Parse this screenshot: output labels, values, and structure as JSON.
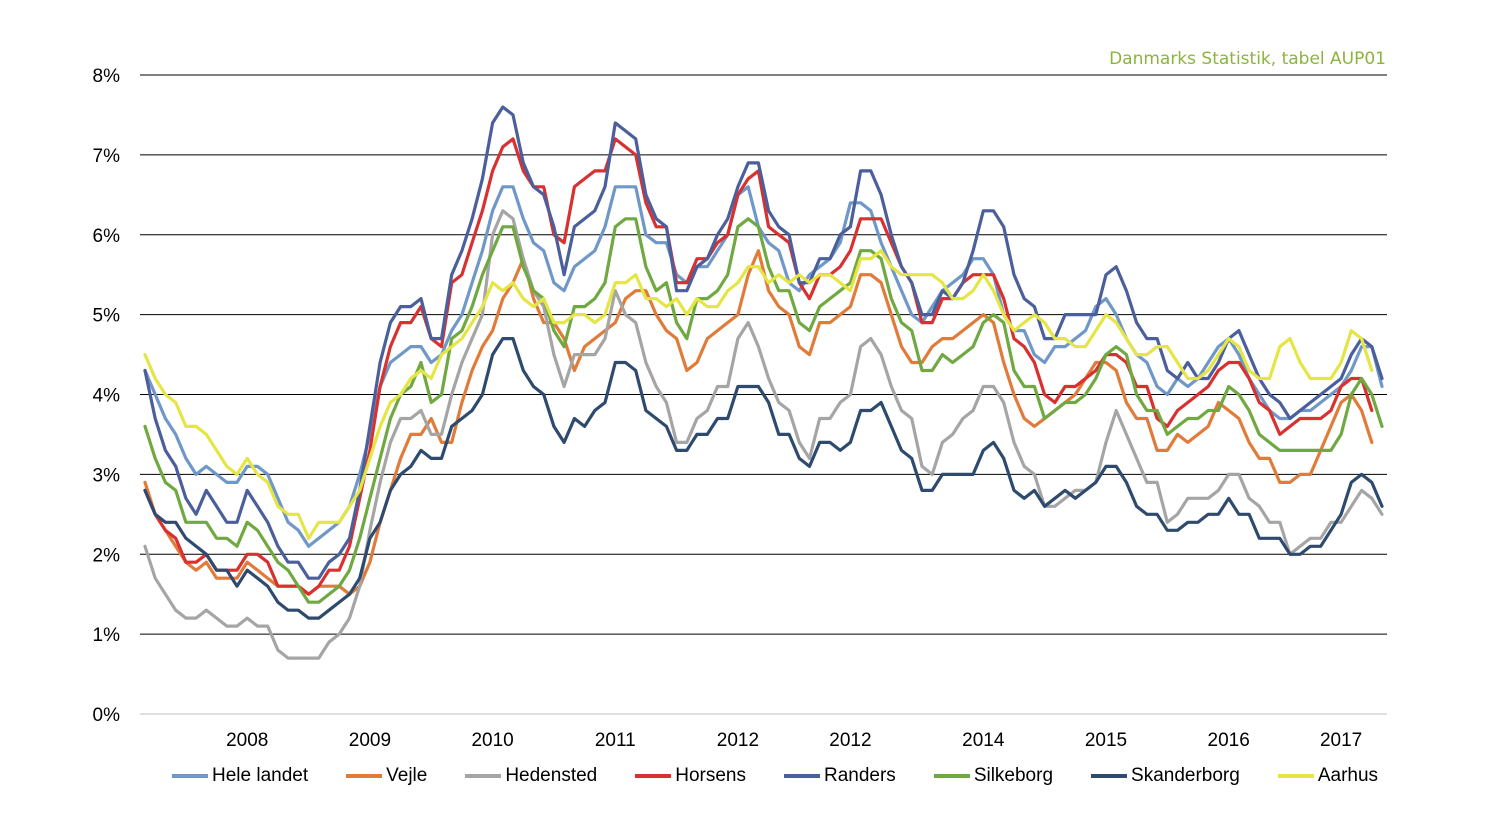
{
  "source_note": "Danmarks Statistik, tabel AUP01",
  "chart_data": {
    "type": "line",
    "title": "",
    "xlabel": "",
    "ylabel": "",
    "ylim": [
      0,
      8
    ],
    "y_ticks": [
      "0%",
      "1%",
      "2%",
      "3%",
      "4%",
      "5%",
      "6%",
      "7%",
      "8%"
    ],
    "x_ticks": [
      {
        "label": "2008",
        "index": 10
      },
      {
        "label": "2009",
        "index": 22
      },
      {
        "label": "2010",
        "index": 34
      },
      {
        "label": "2011",
        "index": 46
      },
      {
        "label": "2012",
        "index": 58
      },
      {
        "label": "2012",
        "index": 69
      },
      {
        "label": "2014",
        "index": 82
      },
      {
        "label": "2015",
        "index": 94
      },
      {
        "label": "2016",
        "index": 106
      },
      {
        "label": "2017",
        "index": 117
      }
    ],
    "grid": true,
    "legend_position": "bottom",
    "series": [
      {
        "name": "Hele landet",
        "color": "#6f97c8",
        "values": [
          4.3,
          4.0,
          3.7,
          3.5,
          3.2,
          3.0,
          3.1,
          3.0,
          2.9,
          2.9,
          3.1,
          3.1,
          3.0,
          2.7,
          2.4,
          2.3,
          2.1,
          2.2,
          2.3,
          2.4,
          2.6,
          3.0,
          3.5,
          4.1,
          4.4,
          4.5,
          4.6,
          4.6,
          4.4,
          4.5,
          4.8,
          5.0,
          5.4,
          5.8,
          6.3,
          6.6,
          6.6,
          6.2,
          5.9,
          5.8,
          5.4,
          5.3,
          5.6,
          5.7,
          5.8,
          6.1,
          6.6,
          6.6,
          6.6,
          6.0,
          5.9,
          5.9,
          5.5,
          5.4,
          5.6,
          5.6,
          5.8,
          6.0,
          6.5,
          6.6,
          6.1,
          5.9,
          5.8,
          5.4,
          5.3,
          5.5,
          5.6,
          5.7,
          5.9,
          6.4,
          6.4,
          6.3,
          5.9,
          5.6,
          5.3,
          5.0,
          4.9,
          5.1,
          5.3,
          5.4,
          5.5,
          5.7,
          5.7,
          5.5,
          5.0,
          4.8,
          4.8,
          4.5,
          4.4,
          4.6,
          4.6,
          4.7,
          4.8,
          5.1,
          5.2,
          5.0,
          4.7,
          4.5,
          4.4,
          4.1,
          4.0,
          4.2,
          4.1,
          4.2,
          4.4,
          4.6,
          4.7,
          4.5,
          4.2,
          4.0,
          3.8,
          3.7,
          3.7,
          3.8,
          3.8,
          3.9,
          4.0,
          4.1,
          4.3,
          4.6,
          4.6,
          4.1
        ]
      },
      {
        "name": "Vejle",
        "color": "#e07b39",
        "values": [
          2.9,
          2.5,
          2.3,
          2.1,
          1.9,
          1.8,
          1.9,
          1.7,
          1.7,
          1.7,
          1.9,
          1.8,
          1.7,
          1.6,
          1.6,
          1.6,
          1.5,
          1.6,
          1.6,
          1.6,
          1.5,
          1.6,
          1.9,
          2.4,
          2.8,
          3.2,
          3.5,
          3.5,
          3.7,
          3.4,
          3.4,
          3.9,
          4.3,
          4.6,
          4.8,
          5.2,
          5.4,
          5.7,
          5.2,
          4.9,
          4.9,
          4.7,
          4.3,
          4.6,
          4.7,
          4.8,
          4.9,
          5.2,
          5.3,
          5.3,
          5.0,
          4.8,
          4.7,
          4.3,
          4.4,
          4.7,
          4.8,
          4.9,
          5.0,
          5.5,
          5.8,
          5.3,
          5.1,
          5.0,
          4.6,
          4.5,
          4.9,
          4.9,
          5.0,
          5.1,
          5.5,
          5.5,
          5.4,
          5.0,
          4.6,
          4.4,
          4.4,
          4.6,
          4.7,
          4.7,
          4.8,
          4.9,
          5.0,
          4.9,
          4.4,
          4.0,
          3.7,
          3.6,
          3.7,
          3.8,
          3.9,
          4.0,
          4.2,
          4.4,
          4.4,
          4.3,
          3.9,
          3.7,
          3.7,
          3.3,
          3.3,
          3.5,
          3.4,
          3.5,
          3.6,
          3.9,
          3.8,
          3.7,
          3.4,
          3.2,
          3.2,
          2.9,
          2.9,
          3.0,
          3.0,
          3.3,
          3.6,
          3.9,
          4.0,
          3.8,
          3.4
        ]
      },
      {
        "name": "Hedensted",
        "color": "#a5a5a5",
        "values": [
          2.1,
          1.7,
          1.5,
          1.3,
          1.2,
          1.2,
          1.3,
          1.2,
          1.1,
          1.1,
          1.2,
          1.1,
          1.1,
          0.8,
          0.7,
          0.7,
          0.7,
          0.7,
          0.9,
          1.0,
          1.2,
          1.6,
          2.3,
          2.9,
          3.4,
          3.7,
          3.7,
          3.8,
          3.5,
          3.5,
          4.0,
          4.4,
          4.7,
          5.0,
          6.0,
          6.3,
          6.2,
          5.7,
          5.3,
          5.1,
          4.5,
          4.1,
          4.5,
          4.5,
          4.5,
          4.7,
          5.3,
          5.0,
          4.9,
          4.4,
          4.1,
          3.9,
          3.4,
          3.4,
          3.7,
          3.8,
          4.1,
          4.1,
          4.7,
          4.9,
          4.6,
          4.2,
          3.9,
          3.8,
          3.4,
          3.2,
          3.7,
          3.7,
          3.9,
          4.0,
          4.6,
          4.7,
          4.5,
          4.1,
          3.8,
          3.7,
          3.1,
          3.0,
          3.4,
          3.5,
          3.7,
          3.8,
          4.1,
          4.1,
          3.9,
          3.4,
          3.1,
          3.0,
          2.6,
          2.6,
          2.7,
          2.8,
          2.8,
          2.9,
          3.4,
          3.8,
          3.5,
          3.2,
          2.9,
          2.9,
          2.4,
          2.5,
          2.7,
          2.7,
          2.7,
          2.8,
          3.0,
          3.0,
          2.7,
          2.6,
          2.4,
          2.4,
          2.0,
          2.1,
          2.2,
          2.2,
          2.4,
          2.4,
          2.6,
          2.8,
          2.7,
          2.5
        ]
      },
      {
        "name": "Horsens",
        "color": "#d93030",
        "values": [
          2.8,
          2.5,
          2.3,
          2.2,
          1.9,
          1.9,
          2.0,
          1.8,
          1.8,
          1.8,
          2.0,
          2.0,
          1.9,
          1.6,
          1.6,
          1.6,
          1.5,
          1.6,
          1.8,
          1.8,
          2.1,
          2.7,
          3.3,
          4.1,
          4.6,
          4.9,
          4.9,
          5.1,
          4.7,
          4.6,
          5.4,
          5.5,
          5.9,
          6.3,
          6.8,
          7.1,
          7.2,
          6.8,
          6.6,
          6.6,
          6.0,
          5.9,
          6.6,
          6.7,
          6.8,
          6.8,
          7.2,
          7.1,
          7.0,
          6.4,
          6.1,
          6.1,
          5.4,
          5.4,
          5.7,
          5.7,
          5.9,
          6.0,
          6.5,
          6.7,
          6.8,
          6.1,
          6.0,
          5.9,
          5.4,
          5.2,
          5.5,
          5.5,
          5.6,
          5.8,
          6.2,
          6.2,
          6.2,
          5.9,
          5.6,
          5.4,
          4.9,
          4.9,
          5.2,
          5.2,
          5.4,
          5.5,
          5.5,
          5.5,
          5.2,
          4.7,
          4.6,
          4.4,
          4.0,
          3.9,
          4.1,
          4.1,
          4.2,
          4.3,
          4.5,
          4.5,
          4.4,
          4.1,
          4.1,
          3.7,
          3.6,
          3.8,
          3.9,
          4.0,
          4.1,
          4.3,
          4.4,
          4.4,
          4.2,
          3.9,
          3.8,
          3.5,
          3.6,
          3.7,
          3.7,
          3.7,
          3.8,
          4.1,
          4.2,
          4.2,
          3.8
        ]
      },
      {
        "name": "Randers",
        "color": "#4a5f9b",
        "values": [
          4.3,
          3.7,
          3.3,
          3.1,
          2.7,
          2.5,
          2.8,
          2.6,
          2.4,
          2.4,
          2.8,
          2.6,
          2.4,
          2.1,
          1.9,
          1.9,
          1.7,
          1.7,
          1.9,
          2.0,
          2.2,
          2.8,
          3.6,
          4.4,
          4.9,
          5.1,
          5.1,
          5.2,
          4.7,
          4.7,
          5.5,
          5.8,
          6.2,
          6.7,
          7.4,
          7.6,
          7.5,
          6.9,
          6.6,
          6.5,
          6.1,
          5.5,
          6.1,
          6.2,
          6.3,
          6.6,
          7.4,
          7.3,
          7.2,
          6.5,
          6.2,
          6.1,
          5.3,
          5.3,
          5.6,
          5.7,
          6.0,
          6.2,
          6.6,
          6.9,
          6.9,
          6.3,
          6.1,
          6.0,
          5.4,
          5.4,
          5.7,
          5.7,
          6.0,
          6.1,
          6.8,
          6.8,
          6.5,
          6.0,
          5.6,
          5.4,
          5.0,
          5.0,
          5.3,
          5.2,
          5.4,
          5.8,
          6.3,
          6.3,
          6.1,
          5.5,
          5.2,
          5.1,
          4.7,
          4.7,
          5.0,
          5.0,
          5.0,
          5.0,
          5.5,
          5.6,
          5.3,
          4.9,
          4.7,
          4.7,
          4.3,
          4.2,
          4.4,
          4.2,
          4.2,
          4.4,
          4.7,
          4.8,
          4.5,
          4.2,
          4.0,
          3.9,
          3.7,
          3.8,
          3.9,
          4.0,
          4.1,
          4.2,
          4.5,
          4.7,
          4.6,
          4.2
        ]
      },
      {
        "name": "Silkeborg",
        "color": "#70a841",
        "values": [
          3.6,
          3.2,
          2.9,
          2.8,
          2.4,
          2.4,
          2.4,
          2.2,
          2.2,
          2.1,
          2.4,
          2.3,
          2.1,
          1.9,
          1.8,
          1.6,
          1.4,
          1.4,
          1.5,
          1.6,
          1.8,
          2.2,
          2.7,
          3.2,
          3.7,
          4.0,
          4.1,
          4.4,
          3.9,
          4.0,
          4.7,
          4.8,
          5.1,
          5.5,
          5.8,
          6.1,
          6.1,
          5.6,
          5.3,
          5.2,
          4.8,
          4.6,
          5.1,
          5.1,
          5.2,
          5.4,
          6.1,
          6.2,
          6.2,
          5.6,
          5.3,
          5.4,
          4.9,
          4.7,
          5.2,
          5.2,
          5.3,
          5.5,
          6.1,
          6.2,
          6.1,
          5.6,
          5.3,
          5.3,
          4.9,
          4.8,
          5.1,
          5.2,
          5.3,
          5.4,
          5.8,
          5.8,
          5.7,
          5.2,
          4.9,
          4.8,
          4.3,
          4.3,
          4.5,
          4.4,
          4.5,
          4.6,
          4.9,
          5.0,
          4.9,
          4.3,
          4.1,
          4.1,
          3.7,
          3.8,
          3.9,
          3.9,
          4.0,
          4.2,
          4.5,
          4.6,
          4.5,
          4.0,
          3.8,
          3.8,
          3.5,
          3.6,
          3.7,
          3.7,
          3.8,
          3.8,
          4.1,
          4.0,
          3.8,
          3.5,
          3.4,
          3.3,
          3.3,
          3.3,
          3.3,
          3.3,
          3.3,
          3.5,
          4.0,
          4.2,
          4.0,
          3.6
        ]
      },
      {
        "name": "Skanderborg",
        "color": "#2e4a6e",
        "values": [
          2.8,
          2.5,
          2.4,
          2.4,
          2.2,
          2.1,
          2.0,
          1.8,
          1.8,
          1.6,
          1.8,
          1.7,
          1.6,
          1.4,
          1.3,
          1.3,
          1.2,
          1.2,
          1.3,
          1.4,
          1.5,
          1.7,
          2.2,
          2.4,
          2.8,
          3.0,
          3.1,
          3.3,
          3.2,
          3.2,
          3.6,
          3.7,
          3.8,
          4.0,
          4.5,
          4.7,
          4.7,
          4.3,
          4.1,
          4.0,
          3.6,
          3.4,
          3.7,
          3.6,
          3.8,
          3.9,
          4.4,
          4.4,
          4.3,
          3.8,
          3.7,
          3.6,
          3.3,
          3.3,
          3.5,
          3.5,
          3.7,
          3.7,
          4.1,
          4.1,
          4.1,
          3.9,
          3.5,
          3.5,
          3.2,
          3.1,
          3.4,
          3.4,
          3.3,
          3.4,
          3.8,
          3.8,
          3.9,
          3.6,
          3.3,
          3.2,
          2.8,
          2.8,
          3.0,
          3.0,
          3.0,
          3.0,
          3.3,
          3.4,
          3.2,
          2.8,
          2.7,
          2.8,
          2.6,
          2.7,
          2.8,
          2.7,
          2.8,
          2.9,
          3.1,
          3.1,
          2.9,
          2.6,
          2.5,
          2.5,
          2.3,
          2.3,
          2.4,
          2.4,
          2.5,
          2.5,
          2.7,
          2.5,
          2.5,
          2.2,
          2.2,
          2.2,
          2.0,
          2.0,
          2.1,
          2.1,
          2.3,
          2.5,
          2.9,
          3.0,
          2.9,
          2.6
        ]
      },
      {
        "name": "Aarhus",
        "color": "#e5e545",
        "values": [
          4.5,
          4.2,
          4.0,
          3.9,
          3.6,
          3.6,
          3.5,
          3.3,
          3.1,
          3.0,
          3.2,
          3.0,
          2.9,
          2.6,
          2.5,
          2.5,
          2.2,
          2.4,
          2.4,
          2.4,
          2.6,
          2.8,
          3.2,
          3.6,
          3.9,
          4.0,
          4.2,
          4.3,
          4.2,
          4.5,
          4.6,
          4.7,
          4.9,
          5.1,
          5.4,
          5.3,
          5.4,
          5.2,
          5.1,
          5.2,
          4.9,
          4.9,
          5.0,
          5.0,
          4.9,
          5.0,
          5.4,
          5.4,
          5.5,
          5.2,
          5.2,
          5.1,
          5.2,
          5.0,
          5.2,
          5.1,
          5.1,
          5.3,
          5.4,
          5.6,
          5.6,
          5.4,
          5.5,
          5.4,
          5.5,
          5.4,
          5.5,
          5.5,
          5.4,
          5.3,
          5.7,
          5.7,
          5.8,
          5.6,
          5.5,
          5.5,
          5.5,
          5.5,
          5.4,
          5.2,
          5.2,
          5.3,
          5.5,
          5.3,
          5.0,
          4.8,
          4.9,
          5.0,
          4.9,
          4.7,
          4.7,
          4.6,
          4.6,
          4.8,
          5.0,
          4.9,
          4.7,
          4.5,
          4.5,
          4.6,
          4.6,
          4.4,
          4.2,
          4.2,
          4.3,
          4.5,
          4.7,
          4.6,
          4.3,
          4.2,
          4.2,
          4.6,
          4.7,
          4.4,
          4.2,
          4.2,
          4.2,
          4.4,
          4.8,
          4.7,
          4.3
        ]
      }
    ]
  }
}
